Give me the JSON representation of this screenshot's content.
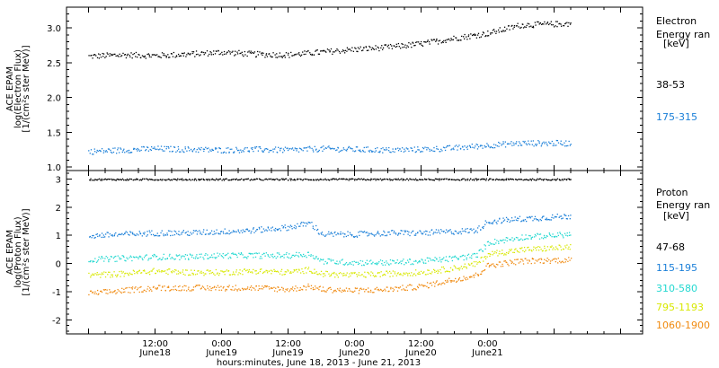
{
  "chart_data": [
    {
      "type": "scatter",
      "instrument": "ACE EPAM",
      "ylabel": "log(Electron Flux)",
      "yunits": "[1/(cm²s ster MeV)]",
      "ylim": [
        0.95,
        3.3
      ],
      "yticks": [
        1.0,
        1.5,
        2.0,
        2.5,
        3.0
      ],
      "ytick_labels": [
        "1.0",
        "1.5",
        "2.0",
        "2.5",
        "3.0"
      ],
      "legend_title": [
        "Electron",
        "Energy ran",
        "[keV]"
      ],
      "series": [
        {
          "name": "38-53",
          "color": "#000000",
          "x": [
            0,
            6,
            12,
            18,
            24,
            30,
            36,
            42,
            48,
            54,
            60,
            66,
            72,
            78,
            87
          ],
          "y": [
            2.6,
            2.62,
            2.61,
            2.63,
            2.66,
            2.63,
            2.62,
            2.66,
            2.7,
            2.73,
            2.78,
            2.86,
            2.93,
            3.05,
            3.07
          ]
        },
        {
          "name": "175-315",
          "color": "#1a7fd8",
          "x": [
            0,
            6,
            12,
            18,
            24,
            30,
            36,
            42,
            48,
            54,
            60,
            66,
            72,
            78,
            87
          ],
          "y": [
            1.23,
            1.25,
            1.27,
            1.26,
            1.25,
            1.26,
            1.25,
            1.27,
            1.26,
            1.25,
            1.26,
            1.28,
            1.32,
            1.35,
            1.35
          ]
        }
      ]
    },
    {
      "type": "scatter",
      "instrument": "ACE EPAM",
      "ylabel": "log(Proton Flux)",
      "yunits": "[1/(cm²s ster MeV)]",
      "ylim": [
        -2.5,
        3.3
      ],
      "yticks": [
        -2,
        -1,
        0,
        1,
        2,
        3
      ],
      "ytick_labels": [
        "-2",
        "-1",
        "0",
        "1",
        "2",
        "3"
      ],
      "legend_title": [
        "Proton",
        "Energy ran",
        "[keV]"
      ],
      "series": [
        {
          "name": "47-68",
          "color": "#000000",
          "x": [
            0,
            10,
            20,
            30,
            40,
            50,
            60,
            70,
            80,
            87
          ],
          "y": [
            3.0,
            3.0,
            3.0,
            3.0,
            3.0,
            3.0,
            3.0,
            3.0,
            3.0,
            3.0
          ]
        },
        {
          "name": "115-195",
          "color": "#1a7fd8",
          "x": [
            0,
            6,
            12,
            18,
            24,
            30,
            36,
            40,
            42,
            48,
            54,
            60,
            66,
            70,
            72,
            78,
            87
          ],
          "y": [
            1.0,
            1.05,
            1.1,
            1.1,
            1.15,
            1.2,
            1.3,
            1.45,
            1.05,
            1.05,
            1.1,
            1.1,
            1.15,
            1.2,
            1.5,
            1.6,
            1.7
          ]
        },
        {
          "name": "310-580",
          "color": "#22d8d0",
          "x": [
            0,
            6,
            12,
            18,
            24,
            30,
            36,
            40,
            42,
            48,
            54,
            60,
            66,
            70,
            72,
            78,
            87
          ],
          "y": [
            0.15,
            0.2,
            0.25,
            0.25,
            0.3,
            0.3,
            0.3,
            0.35,
            0.1,
            0.05,
            0.05,
            0.1,
            0.2,
            0.3,
            0.75,
            0.95,
            1.05
          ]
        },
        {
          "name": "795-1193",
          "color": "#d8e800",
          "x": [
            0,
            6,
            12,
            18,
            24,
            30,
            36,
            40,
            42,
            48,
            54,
            60,
            66,
            70,
            72,
            78,
            87
          ],
          "y": [
            -0.4,
            -0.35,
            -0.25,
            -0.3,
            -0.3,
            -0.25,
            -0.3,
            -0.2,
            -0.35,
            -0.4,
            -0.35,
            -0.3,
            -0.15,
            0.0,
            0.35,
            0.5,
            0.6
          ]
        },
        {
          "name": "1060-1900",
          "color": "#f08a10",
          "x": [
            0,
            6,
            12,
            18,
            24,
            30,
            36,
            40,
            42,
            48,
            54,
            60,
            66,
            70,
            72,
            78,
            87
          ],
          "y": [
            -1.05,
            -0.95,
            -0.85,
            -0.85,
            -0.85,
            -0.85,
            -0.9,
            -0.8,
            -0.9,
            -0.95,
            -0.9,
            -0.8,
            -0.55,
            -0.4,
            -0.05,
            0.1,
            0.15
          ]
        }
      ]
    }
  ],
  "xaxis": {
    "range_hours": [
      -4,
      100
    ],
    "major_ticks": [
      12,
      24,
      36,
      48,
      60,
      72
    ],
    "tick_times": [
      "12:00",
      "0:00",
      "12:00",
      "0:00",
      "12:00",
      "0:00"
    ],
    "tick_dates": [
      "June18",
      "June19",
      "June19",
      "June20",
      "June20",
      "June21"
    ],
    "title": "hours:minutes, June 18, 2013 - June 21, 2013"
  }
}
